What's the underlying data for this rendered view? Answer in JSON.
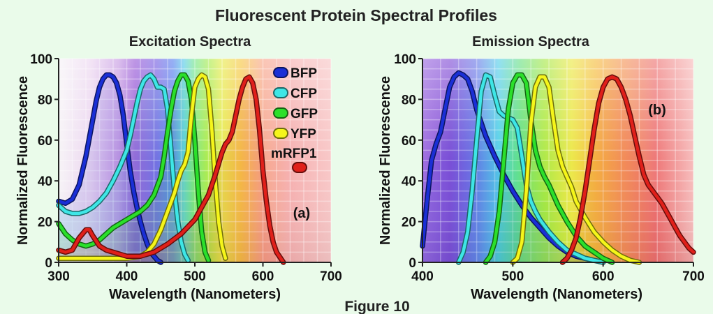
{
  "figure": {
    "title": "Fluorescent Protein Spectral Profiles",
    "caption": "Figure 10"
  },
  "chart_data": [
    {
      "type": "line",
      "title": "Excitation Spectra",
      "xlabel": "Wavelength (Nanometers)",
      "ylabel": "Normalized Fluorescence",
      "xlim": [
        300,
        700
      ],
      "ylim": [
        0,
        100
      ],
      "xticks": [
        300,
        400,
        500,
        600,
        700
      ],
      "yticks": [
        0,
        20,
        40,
        60,
        80,
        100
      ],
      "annotation": "(a)",
      "grid": true,
      "legend_position": "top-right",
      "series": [
        {
          "name": "BFP",
          "color": "#1a2fd6",
          "x": [
            300,
            310,
            320,
            330,
            340,
            350,
            355,
            360,
            365,
            370,
            375,
            380,
            385,
            390,
            395,
            400,
            405,
            410,
            415,
            420,
            425,
            430,
            435,
            440,
            445,
            450
          ],
          "y": [
            30,
            29,
            31,
            38,
            52,
            70,
            79,
            86,
            90,
            92,
            92,
            91,
            88,
            82,
            72,
            58,
            45,
            35,
            27,
            20,
            14,
            9,
            5,
            3,
            1,
            0
          ]
        },
        {
          "name": "CFP",
          "color": "#3ee6e6",
          "x": [
            300,
            310,
            320,
            330,
            340,
            350,
            360,
            370,
            380,
            390,
            400,
            405,
            410,
            415,
            420,
            425,
            430,
            435,
            440,
            445,
            450,
            455,
            460,
            465,
            470,
            475,
            480,
            485,
            490
          ],
          "y": [
            28,
            25,
            24,
            24,
            25,
            27,
            30,
            34,
            40,
            47,
            55,
            62,
            70,
            78,
            85,
            89,
            91,
            92,
            90,
            86,
            86,
            85,
            75,
            55,
            35,
            20,
            10,
            4,
            1
          ]
        },
        {
          "name": "GFP",
          "color": "#2be02b",
          "x": [
            300,
            310,
            320,
            330,
            340,
            350,
            360,
            370,
            380,
            390,
            400,
            410,
            420,
            430,
            440,
            450,
            455,
            460,
            465,
            470,
            475,
            480,
            485,
            490,
            495,
            500,
            505,
            510,
            515,
            520
          ],
          "y": [
            19,
            14,
            11,
            9,
            8,
            9,
            11,
            14,
            17,
            19,
            21,
            23,
            25,
            28,
            33,
            42,
            52,
            64,
            75,
            84,
            89,
            92,
            92,
            89,
            80,
            60,
            35,
            15,
            5,
            1
          ]
        },
        {
          "name": "YFP",
          "color": "#f5f51a",
          "x": [
            300,
            320,
            340,
            360,
            380,
            400,
            420,
            430,
            440,
            450,
            460,
            470,
            475,
            480,
            485,
            490,
            495,
            500,
            505,
            510,
            515,
            520,
            525,
            530,
            535,
            540,
            545
          ],
          "y": [
            2,
            2,
            2,
            2,
            2,
            2,
            3,
            5,
            9,
            16,
            25,
            34,
            40,
            45,
            48,
            54,
            72,
            86,
            90,
            92,
            91,
            85,
            65,
            40,
            20,
            8,
            2
          ]
        },
        {
          "name": "mRFP1",
          "color": "#e0201a",
          "x": [
            300,
            310,
            320,
            330,
            340,
            345,
            350,
            360,
            370,
            380,
            390,
            400,
            420,
            440,
            460,
            480,
            500,
            520,
            530,
            540,
            545,
            550,
            555,
            560,
            565,
            570,
            575,
            580,
            585,
            590,
            595,
            600,
            605,
            610,
            615,
            620,
            630
          ],
          "y": [
            6,
            5,
            6,
            12,
            16,
            16,
            13,
            8,
            6,
            5,
            4,
            3,
            3,
            5,
            9,
            14,
            21,
            33,
            43,
            54,
            58,
            60,
            64,
            72,
            80,
            86,
            90,
            91,
            88,
            80,
            65,
            45,
            30,
            18,
            10,
            5,
            0
          ]
        }
      ]
    },
    {
      "type": "line",
      "title": "Emission Spectra",
      "xlabel": "Wavelength (Nanometers)",
      "ylabel": "Normalized Fluorescence",
      "xlim": [
        400,
        700
      ],
      "ylim": [
        0,
        100
      ],
      "xticks": [
        400,
        500,
        600,
        700
      ],
      "yticks": [
        0,
        20,
        40,
        60,
        80,
        100
      ],
      "annotation": "(b)",
      "grid": true,
      "series": [
        {
          "name": "BFP",
          "color": "#1a2fd6",
          "x": [
            400,
            405,
            410,
            415,
            420,
            425,
            430,
            435,
            440,
            445,
            450,
            455,
            460,
            470,
            480,
            490,
            500,
            510,
            520,
            530,
            540,
            550,
            560,
            570,
            580,
            590,
            600
          ],
          "y": [
            8,
            30,
            50,
            58,
            64,
            75,
            86,
            91,
            93,
            92,
            90,
            84,
            75,
            62,
            52,
            43,
            35,
            28,
            22,
            17,
            12,
            8,
            5,
            3,
            2,
            1,
            0
          ]
        },
        {
          "name": "CFP",
          "color": "#3ee6e6",
          "x": [
            440,
            445,
            450,
            455,
            460,
            465,
            470,
            475,
            480,
            485,
            490,
            495,
            500,
            505,
            510,
            515,
            520,
            525,
            530,
            540,
            550,
            560,
            570,
            580,
            590,
            600
          ],
          "y": [
            0,
            5,
            15,
            35,
            60,
            84,
            92,
            91,
            82,
            74,
            72,
            71,
            70,
            66,
            52,
            38,
            30,
            25,
            21,
            15,
            10,
            6,
            4,
            2,
            1,
            0
          ]
        },
        {
          "name": "GFP",
          "color": "#2be02b",
          "x": [
            470,
            475,
            480,
            485,
            490,
            495,
            500,
            505,
            510,
            515,
            520,
            525,
            530,
            535,
            540,
            550,
            560,
            570,
            580,
            590,
            600,
            610
          ],
          "y": [
            0,
            3,
            10,
            25,
            50,
            75,
            88,
            92,
            92,
            88,
            70,
            55,
            47,
            42,
            38,
            28,
            20,
            13,
            8,
            5,
            2,
            0
          ]
        },
        {
          "name": "YFP",
          "color": "#f5f51a",
          "x": [
            500,
            505,
            510,
            515,
            520,
            525,
            530,
            535,
            540,
            545,
            550,
            555,
            560,
            565,
            570,
            580,
            590,
            600,
            610,
            620,
            630,
            640
          ],
          "y": [
            0,
            2,
            10,
            35,
            68,
            86,
            91,
            91,
            86,
            70,
            55,
            47,
            42,
            37,
            30,
            22,
            15,
            10,
            6,
            3,
            1,
            0
          ]
        },
        {
          "name": "mRFP1",
          "color": "#e0201a",
          "x": [
            555,
            560,
            565,
            570,
            575,
            580,
            585,
            590,
            595,
            600,
            605,
            610,
            615,
            620,
            625,
            630,
            635,
            640,
            645,
            650,
            655,
            660,
            665,
            670,
            675,
            680,
            685,
            690,
            695,
            700
          ],
          "y": [
            0,
            2,
            6,
            12,
            22,
            35,
            50,
            65,
            78,
            86,
            90,
            91,
            90,
            86,
            80,
            72,
            62,
            52,
            43,
            38,
            35,
            32,
            29,
            25,
            21,
            17,
            13,
            10,
            7,
            5
          ]
        }
      ]
    }
  ]
}
